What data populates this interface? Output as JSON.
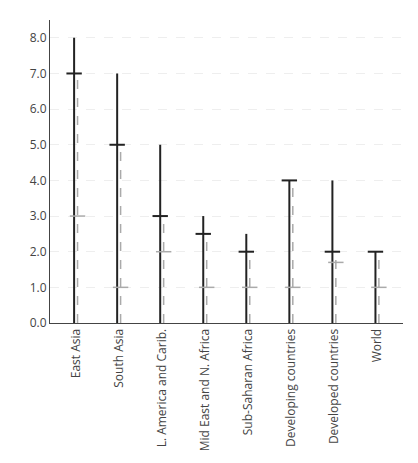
{
  "chart_data": {
    "type": "range",
    "categories": [
      "East Asia",
      "South Asia",
      "L. America and Carib.",
      "Mid East and N. Africa",
      "Sub-Saharan Africa",
      "Developing countries",
      "Developed countries",
      "World"
    ],
    "series": [
      {
        "color": "#222222",
        "line_style": "solid",
        "high": [
          8.0,
          7.0,
          5.0,
          3.0,
          2.5,
          4.0,
          4.0,
          2.0
        ],
        "low": [
          0.0,
          0.0,
          0.0,
          0.0,
          0.0,
          0.0,
          0.0,
          0.0
        ],
        "values": [
          7.0,
          5.0,
          3.0,
          2.5,
          2.0,
          4.0,
          2.0,
          2.0
        ]
      },
      {
        "color": "#aaaaaa",
        "line_style": "dashed",
        "high": [
          7.0,
          5.0,
          3.0,
          2.5,
          2.0,
          4.0,
          2.0,
          2.0
        ],
        "low": [
          0.0,
          0.0,
          0.0,
          0.0,
          0.0,
          0.0,
          0.0,
          0.0
        ],
        "values": [
          3.0,
          1.0,
          2.0,
          1.0,
          1.0,
          1.0,
          1.7,
          1.0
        ]
      }
    ],
    "ylim": [
      0.0,
      8.5
    ],
    "yticks": [
      {
        "value": 0.0,
        "label": "0.0"
      },
      {
        "value": 1.0,
        "label": "1.0"
      },
      {
        "value": 2.0,
        "label": "2.0"
      },
      {
        "value": 3.0,
        "label": "3.0"
      },
      {
        "value": 4.0,
        "label": "4.0"
      },
      {
        "value": 5.0,
        "label": "5.0"
      },
      {
        "value": 6.0,
        "label": "6.0"
      },
      {
        "value": 7.0,
        "label": "7.0"
      },
      {
        "value": 8.0,
        "label": "8.0"
      }
    ],
    "grid": true
  }
}
